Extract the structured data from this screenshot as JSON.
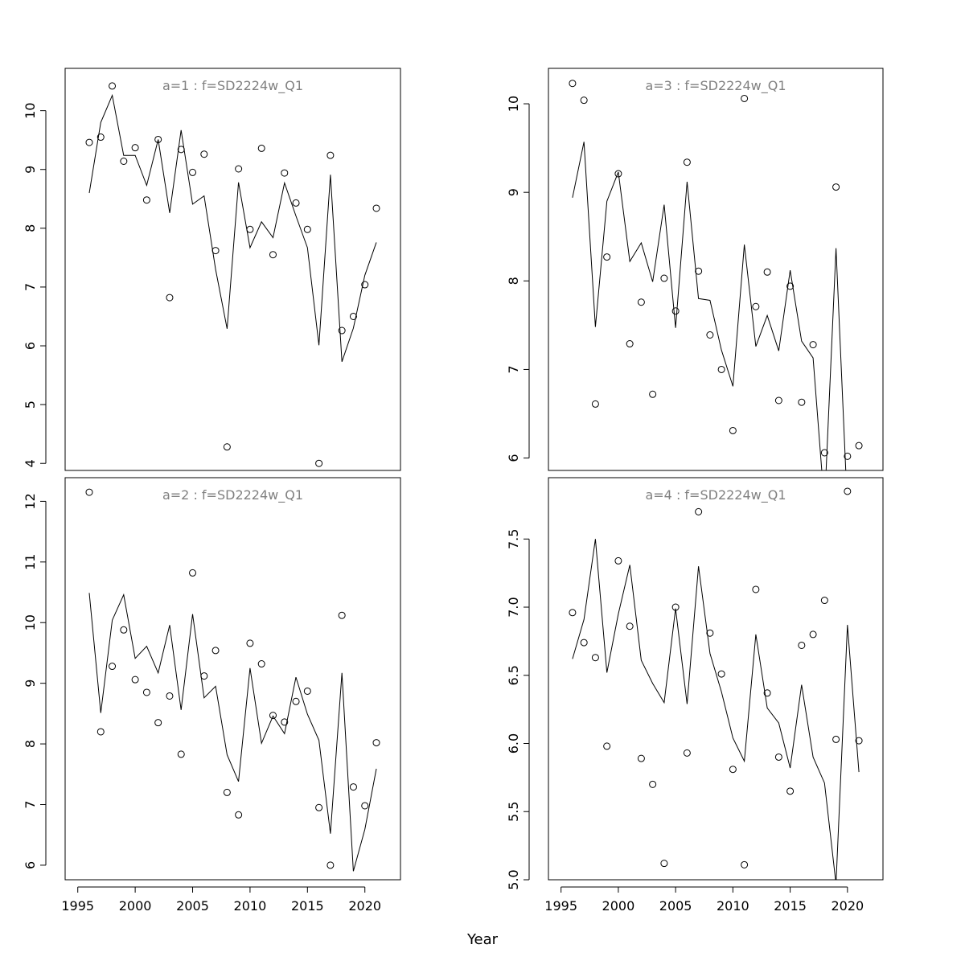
{
  "figure": {
    "xlabel": "Year"
  },
  "chart_data": [
    {
      "type": "line+scatter",
      "title": "a=1  :  f=SD2224w_Q1",
      "years": [
        1996,
        1997,
        1998,
        1999,
        2000,
        2001,
        2002,
        2003,
        2004,
        2005,
        2006,
        2007,
        2008,
        2009,
        2010,
        2011,
        2012,
        2013,
        2014,
        2015,
        2016,
        2017,
        2018,
        2019,
        2020,
        2021
      ],
      "observed": [
        9.46,
        9.55,
        10.42,
        9.14,
        9.37,
        8.48,
        9.51,
        6.82,
        9.34,
        8.95,
        9.26,
        7.62,
        4.28,
        9.01,
        7.98,
        9.36,
        7.55,
        8.94,
        8.43,
        7.98,
        4.0,
        9.24,
        6.26,
        6.5,
        7.04,
        8.34
      ],
      "fitted": [
        8.6,
        9.8,
        10.26,
        9.24,
        9.24,
        8.73,
        9.51,
        8.26,
        9.67,
        8.41,
        8.55,
        7.3,
        6.29,
        8.78,
        7.67,
        8.11,
        7.84,
        8.77,
        8.21,
        7.67,
        6.01,
        8.91,
        5.73,
        6.3,
        7.2,
        7.76
      ],
      "xlim": [
        1993.9,
        2023.1
      ],
      "ylim": [
        3.88,
        10.72
      ],
      "xticks": [
        1995,
        2000,
        2005,
        2010,
        2015,
        2020
      ],
      "yticks": [
        4,
        5,
        6,
        7,
        8,
        9,
        10
      ],
      "ytick_labels": [
        "4",
        "5",
        "6",
        "7",
        "8",
        "9",
        "10"
      ],
      "show_xaxis": false
    },
    {
      "type": "line+scatter",
      "title": "a=3  :  f=SD2224w_Q1",
      "years": [
        1996,
        1997,
        1998,
        1999,
        2000,
        2001,
        2002,
        2003,
        2004,
        2005,
        2006,
        2007,
        2008,
        2009,
        2010,
        2011,
        2012,
        2013,
        2014,
        2015,
        2016,
        2017,
        2018,
        2019,
        2020,
        2021
      ],
      "observed": [
        10.23,
        10.04,
        6.61,
        8.27,
        9.21,
        7.29,
        7.76,
        6.72,
        8.03,
        7.66,
        9.34,
        8.11,
        7.39,
        7.0,
        6.31,
        10.06,
        7.71,
        8.1,
        6.65,
        7.94,
        6.63,
        7.28,
        6.06,
        9.06,
        6.02,
        6.14
      ],
      "fitted": [
        8.94,
        9.57,
        7.48,
        8.9,
        9.23,
        8.22,
        8.43,
        7.99,
        8.86,
        7.47,
        9.12,
        7.8,
        7.78,
        7.22,
        6.81,
        8.41,
        7.26,
        7.61,
        7.21,
        8.12,
        7.32,
        7.13,
        5.46,
        8.37,
        5.43,
        null
      ],
      "xlim": [
        1993.9,
        2023.1
      ],
      "ylim": [
        5.86,
        10.4
      ],
      "xticks": [
        1995,
        2000,
        2005,
        2010,
        2015,
        2020
      ],
      "yticks": [
        6,
        7,
        8,
        9,
        10
      ],
      "ytick_labels": [
        "6",
        "7",
        "8",
        "9",
        "10"
      ],
      "show_xaxis": false
    },
    {
      "type": "line+scatter",
      "title": "a=2  :  f=SD2224w_Q1",
      "years": [
        1996,
        1997,
        1998,
        1999,
        2000,
        2001,
        2002,
        2003,
        2004,
        2005,
        2006,
        2007,
        2008,
        2009,
        2010,
        2011,
        2012,
        2013,
        2014,
        2015,
        2016,
        2017,
        2018,
        2019,
        2020,
        2021
      ],
      "observed": [
        12.15,
        8.2,
        9.28,
        9.88,
        9.06,
        8.85,
        8.35,
        8.79,
        7.83,
        10.82,
        9.12,
        9.54,
        7.2,
        6.83,
        9.66,
        9.32,
        8.47,
        8.36,
        8.7,
        8.87,
        6.95,
        6.0,
        10.12,
        7.29,
        6.98,
        8.02
      ],
      "fitted": [
        10.49,
        8.51,
        10.04,
        10.46,
        9.41,
        9.61,
        9.17,
        9.96,
        8.56,
        10.14,
        8.76,
        8.95,
        7.82,
        7.38,
        9.25,
        8.01,
        8.46,
        8.17,
        9.1,
        8.49,
        8.06,
        6.52,
        9.17,
        5.9,
        6.59,
        7.59
      ],
      "xlim": [
        1993.9,
        2023.1
      ],
      "ylim": [
        5.76,
        12.39
      ],
      "xticks": [
        1995,
        2000,
        2005,
        2010,
        2015,
        2020
      ],
      "xtick_labels": [
        "1995",
        "2000",
        "2005",
        "2010",
        "2015",
        "2020"
      ],
      "yticks": [
        6,
        7,
        8,
        9,
        10,
        11,
        12
      ],
      "ytick_labels": [
        "6",
        "7",
        "8",
        "9",
        "10",
        "11",
        "12"
      ],
      "show_xaxis": true
    },
    {
      "type": "line+scatter",
      "title": "a=4  :  f=SD2224w_Q1",
      "years": [
        1996,
        1997,
        1998,
        1999,
        2000,
        2001,
        2002,
        2003,
        2004,
        2005,
        2006,
        2007,
        2008,
        2009,
        2010,
        2011,
        2012,
        2013,
        2014,
        2015,
        2016,
        2017,
        2018,
        2019,
        2020,
        2021
      ],
      "observed": [
        6.96,
        6.74,
        6.63,
        5.98,
        7.34,
        6.86,
        5.89,
        5.7,
        5.12,
        7.0,
        5.93,
        7.7,
        6.81,
        6.51,
        5.81,
        5.11,
        7.13,
        6.37,
        5.9,
        5.65,
        6.72,
        6.8,
        7.05,
        6.03,
        7.85,
        6.02
      ],
      "fitted": [
        6.62,
        6.91,
        7.5,
        6.52,
        6.95,
        7.31,
        6.61,
        6.44,
        6.3,
        6.99,
        6.29,
        7.3,
        6.66,
        6.38,
        6.04,
        5.87,
        6.8,
        6.26,
        6.15,
        5.82,
        6.43,
        5.9,
        5.71,
        4.97,
        6.87,
        5.79
      ],
      "xlim": [
        1993.9,
        2023.1
      ],
      "ylim": [
        5.0,
        7.95
      ],
      "xticks": [
        1995,
        2000,
        2005,
        2010,
        2015,
        2020
      ],
      "xtick_labels": [
        "1995",
        "2000",
        "2005",
        "2010",
        "2015",
        "2020"
      ],
      "yticks": [
        5.0,
        5.5,
        6.0,
        6.5,
        7.0,
        7.5
      ],
      "ytick_labels": [
        "5.0",
        "5.5",
        "6.0",
        "6.5",
        "7.0",
        "7.5"
      ],
      "show_xaxis": true
    }
  ]
}
